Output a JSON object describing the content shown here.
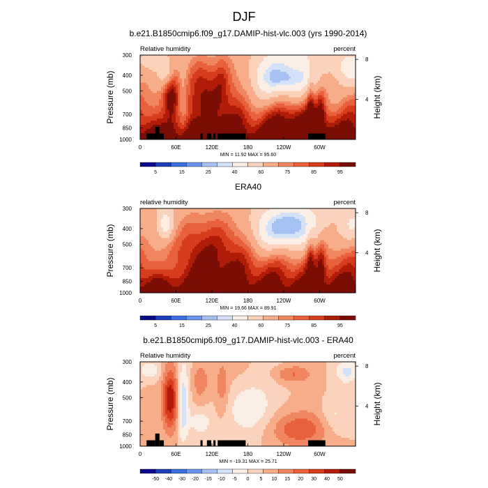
{
  "page_title": "DJF",
  "colors": {
    "cool": [
      "#0a0a8c",
      "#1c3fb8",
      "#3d6fe0",
      "#6a94ec",
      "#a6c2f3",
      "#d3e1f9"
    ],
    "neutral": "#fbeee4",
    "warm": [
      "#fbd3bc",
      "#f7ad8a",
      "#f08660",
      "#e8603c",
      "#d73c1c",
      "#b01c08",
      "#7a0d04"
    ],
    "terrain": "#000000"
  },
  "chart_data": [
    {
      "type": "heatmap",
      "title": "b.e21.B1850cmip6.f09_g17.DAMIP-hist-vlc.003 (yrs 1990-2014)",
      "subtitle_left": "Relative humidity",
      "subtitle_right": "percent",
      "ylabel": "Pressure (mb)",
      "ylabel_right": "Height (km)",
      "x_ticks": [
        "0",
        "60E",
        "120E",
        "180",
        "120W",
        "60W"
      ],
      "x_tick_lon": [
        0,
        60,
        120,
        180,
        240,
        300
      ],
      "xlim": [
        0,
        360
      ],
      "y_ticks": [
        "300",
        "400",
        "500",
        "700",
        "850",
        "1000"
      ],
      "y_tick_p": [
        300,
        400,
        500,
        700,
        850,
        1000
      ],
      "ylim": [
        1000,
        300
      ],
      "y_log": true,
      "right_ticks": [
        "8",
        "4"
      ],
      "right_tick_km": [
        8,
        4
      ],
      "stats": "MIN = 11.92  MAX = 95.60",
      "min": 11.92,
      "max": 95.6,
      "colorbar_labels": [
        "5",
        "15",
        "25",
        "40",
        "60",
        "75",
        "85",
        "95"
      ],
      "colorbar_levels": [
        5,
        10,
        15,
        20,
        25,
        30,
        40,
        50,
        60,
        65,
        70,
        75,
        80,
        85,
        90,
        95
      ],
      "field": "mod",
      "has_terrain": true
    },
    {
      "type": "heatmap",
      "title": "ERA40",
      "subtitle_left": "relative humidity",
      "subtitle_right": "percent",
      "ylabel": "Pressure (mb)",
      "ylabel_right": "Height (km)",
      "x_ticks": [
        "0",
        "60E",
        "120E",
        "180",
        "120W",
        "60W"
      ],
      "x_tick_lon": [
        0,
        60,
        120,
        180,
        240,
        300
      ],
      "xlim": [
        0,
        360
      ],
      "y_ticks": [
        "300",
        "400",
        "500",
        "700",
        "850",
        "1000"
      ],
      "y_tick_p": [
        300,
        400,
        500,
        700,
        850,
        1000
      ],
      "ylim": [
        1000,
        300
      ],
      "y_log": true,
      "right_ticks": [
        "8",
        "4"
      ],
      "right_tick_km": [
        8,
        4
      ],
      "stats": "MIN = 19.66  MAX = 89.91",
      "min": 19.66,
      "max": 89.91,
      "colorbar_labels": [
        "5",
        "15",
        "25",
        "40",
        "60",
        "75",
        "85",
        "95"
      ],
      "colorbar_levels": [
        5,
        10,
        15,
        20,
        25,
        30,
        40,
        50,
        60,
        65,
        70,
        75,
        80,
        85,
        90,
        95
      ],
      "field": "obs",
      "has_terrain": false
    },
    {
      "type": "heatmap",
      "title": "b.e21.B1850cmip6.f09_g17.DAMIP-hist-vlc.003 - ERA40",
      "subtitle_left": "Relative humidity",
      "subtitle_right": "percent",
      "ylabel": "Pressure (mb)",
      "ylabel_right": "Height (km)",
      "x_ticks": [
        "0",
        "60E",
        "120E",
        "180",
        "120W",
        "60W"
      ],
      "x_tick_lon": [
        0,
        60,
        120,
        180,
        240,
        300
      ],
      "xlim": [
        0,
        360
      ],
      "y_ticks": [
        "300",
        "400",
        "500",
        "700",
        "850",
        "1000"
      ],
      "y_tick_p": [
        300,
        400,
        500,
        700,
        850,
        1000
      ],
      "ylim": [
        1000,
        300
      ],
      "y_log": true,
      "right_ticks": [
        "8",
        "4"
      ],
      "right_tick_km": [
        8,
        4
      ],
      "stats": "MIN = -19.31  MAX = 25.71",
      "min": -19.31,
      "max": 25.71,
      "colorbar_labels": [
        "-50",
        "-40",
        "-30",
        "-20",
        "-15",
        "-10",
        "-5",
        "0",
        "5",
        "10",
        "15",
        "20",
        "30",
        "40",
        "50"
      ],
      "colorbar_levels": [
        -50,
        -40,
        -30,
        -20,
        -15,
        -10,
        -5,
        0,
        5,
        10,
        15,
        20,
        30,
        40,
        50
      ],
      "field": "diff",
      "has_terrain": true
    }
  ]
}
